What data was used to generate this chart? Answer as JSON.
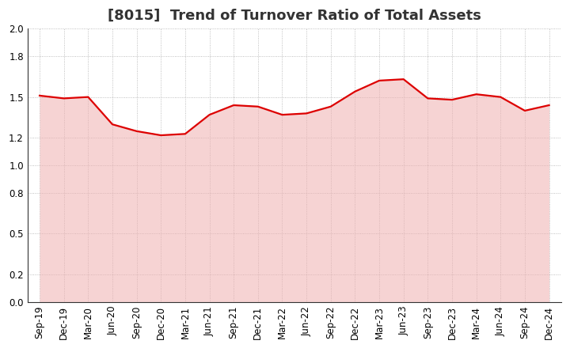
{
  "title": "[8015]  Trend of Turnover Ratio of Total Assets",
  "x_labels": [
    "Sep-19",
    "Dec-19",
    "Mar-20",
    "Jun-20",
    "Sep-20",
    "Dec-20",
    "Mar-21",
    "Jun-21",
    "Sep-21",
    "Dec-21",
    "Mar-22",
    "Jun-22",
    "Sep-22",
    "Dec-22",
    "Mar-23",
    "Jun-23",
    "Sep-23",
    "Dec-23",
    "Mar-24",
    "Jun-24",
    "Sep-24",
    "Dec-24"
  ],
  "y_values": [
    1.51,
    1.49,
    1.5,
    1.3,
    1.25,
    1.22,
    1.23,
    1.37,
    1.44,
    1.43,
    1.37,
    1.38,
    1.43,
    1.54,
    1.62,
    1.63,
    1.49,
    1.48,
    1.52,
    1.5,
    1.4,
    1.44
  ],
  "line_color": "#dd0000",
  "fill_color": "#f0b0b0",
  "ylim": [
    0.0,
    2.0
  ],
  "yticks": [
    0.0,
    0.2,
    0.5,
    0.8,
    1.0,
    1.2,
    1.5,
    1.8,
    2.0
  ],
  "background_color": "#ffffff",
  "grid_color": "#999999",
  "title_fontsize": 13,
  "tick_fontsize": 8.5
}
